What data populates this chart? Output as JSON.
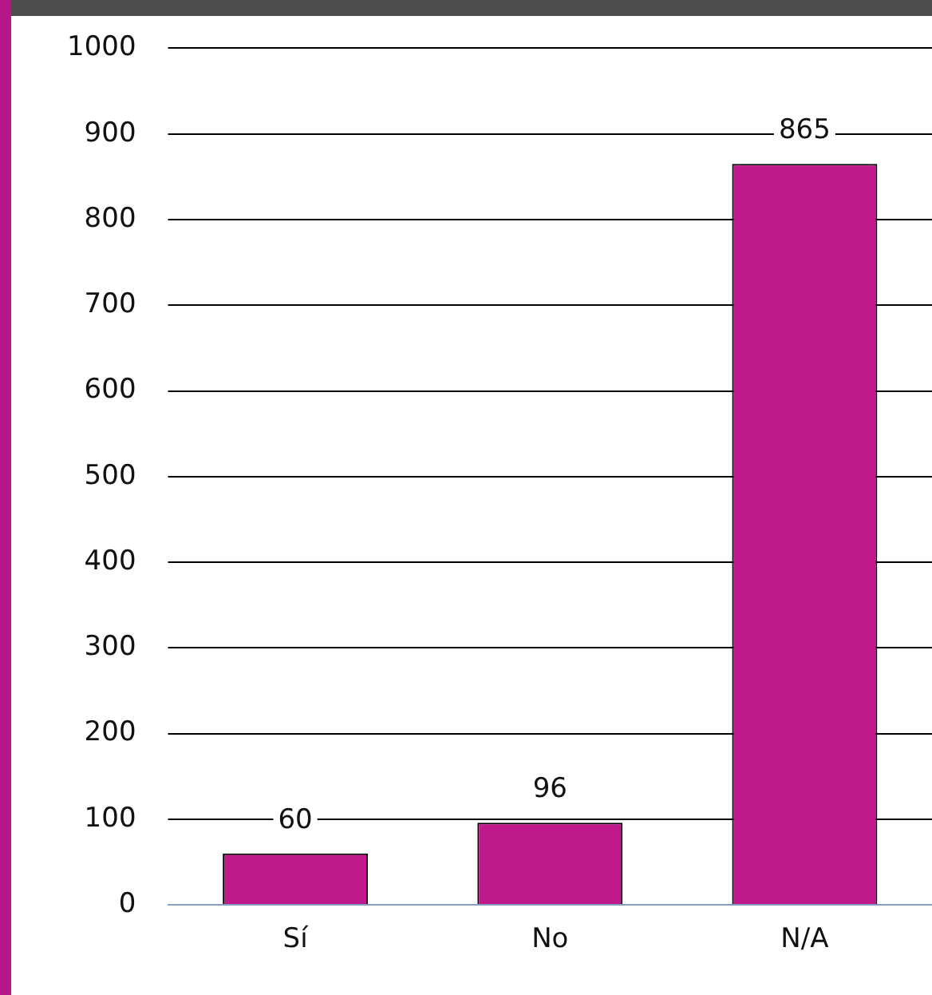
{
  "chart_data": {
    "type": "bar",
    "categories": [
      "Sí",
      "No",
      "N/A"
    ],
    "values": [
      60,
      96,
      865
    ],
    "color": "#c0198c",
    "ylim": [
      0,
      1000
    ],
    "yticks": [
      0,
      100,
      200,
      300,
      400,
      500,
      600,
      700,
      800,
      900,
      1000
    ],
    "grid": "y",
    "data_labels": true,
    "legend": false
  }
}
